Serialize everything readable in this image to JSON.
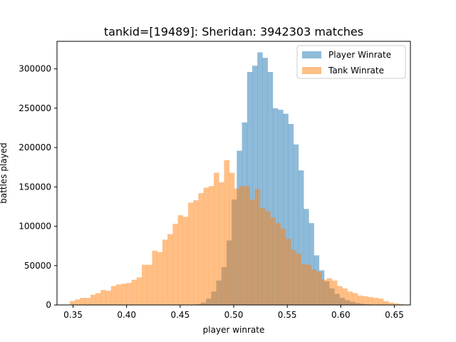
{
  "chart_data": {
    "type": "histogram",
    "title": "tankid=[19489]: Sheridan: 3942303 matches",
    "xlabel": "player winrate",
    "ylabel": "battles played",
    "xlim": [
      0.335,
      0.665
    ],
    "ylim": [
      0,
      335000
    ],
    "xticks": [
      0.35,
      0.4,
      0.45,
      0.5,
      0.55,
      0.6,
      0.65
    ],
    "xtick_labels": [
      "0.35",
      "0.40",
      "0.45",
      "0.50",
      "0.55",
      "0.60",
      "0.65"
    ],
    "yticks": [
      0,
      50000,
      100000,
      150000,
      200000,
      250000,
      300000
    ],
    "ytick_labels": [
      "0",
      "50000",
      "100000",
      "150000",
      "200000",
      "250000",
      "300000"
    ],
    "legend_position": "upper right",
    "series": [
      {
        "name": "Player Winrate",
        "color": "#1f77b4",
        "opacity": 0.5,
        "bin_start": 0.4645,
        "bin_width": 0.0048,
        "values": [
          1000,
          3000,
          8000,
          17000,
          31000,
          48000,
          82000,
          134000,
          196000,
          232000,
          296000,
          304000,
          321000,
          314000,
          296000,
          250000,
          248000,
          243000,
          230000,
          204000,
          171000,
          122000,
          104000,
          63000,
          44000,
          30000,
          21000,
          14000,
          9000,
          6000,
          4000,
          2500,
          1500,
          800,
          400
        ]
      },
      {
        "name": "Tank Winrate",
        "color": "#ff7f0e",
        "opacity": 0.5,
        "bin_start": 0.347,
        "bin_width": 0.0048,
        "values": [
          5000,
          7000,
          9000,
          9000,
          13000,
          15000,
          19000,
          18000,
          24000,
          26000,
          27000,
          28000,
          32000,
          35000,
          51000,
          51000,
          69000,
          67000,
          83000,
          90000,
          103000,
          114000,
          112000,
          130000,
          133000,
          142000,
          149000,
          151000,
          168000,
          156000,
          184000,
          168000,
          148000,
          151000,
          151000,
          134000,
          147000,
          123000,
          119000,
          111000,
          104000,
          97000,
          84000,
          70000,
          65000,
          52000,
          51000,
          45000,
          42000,
          32000,
          34000,
          31000,
          24000,
          21000,
          17000,
          15000,
          12000,
          11000,
          10000,
          9000,
          8000,
          5000,
          3000,
          2000,
          1000
        ]
      }
    ]
  }
}
